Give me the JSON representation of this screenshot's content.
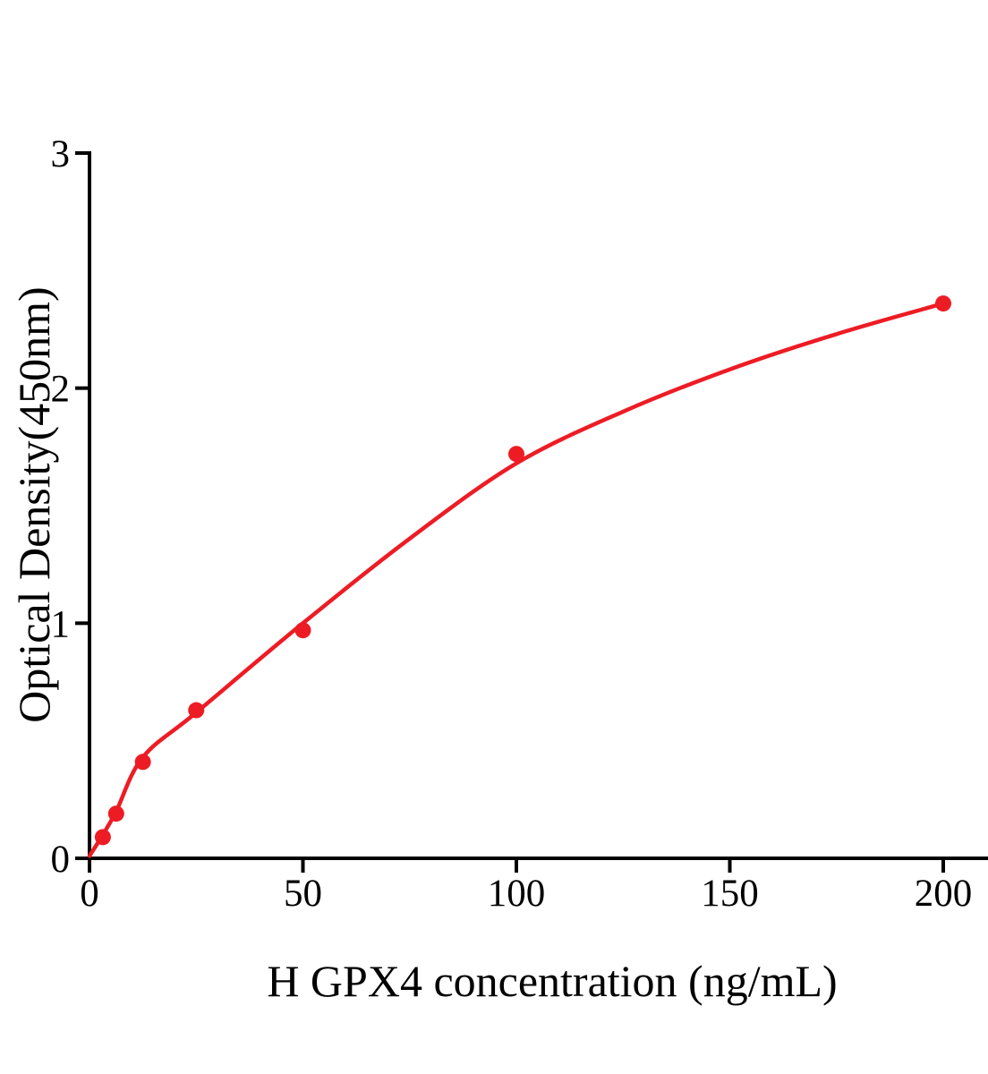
{
  "chart_data": {
    "type": "scatter",
    "title": "",
    "xlabel": "H GPX4 concentration (ng/mL)",
    "ylabel": "Optical Density(450nm)",
    "xlim": [
      0,
      200
    ],
    "ylim": [
      0,
      3
    ],
    "x_ticks": [
      0,
      50,
      100,
      150,
      200
    ],
    "y_ticks": [
      0,
      1,
      2,
      3
    ],
    "grid": false,
    "legend": "none",
    "marker": "filled-circle",
    "points": [
      {
        "x": 3.125,
        "y": 0.09
      },
      {
        "x": 6.25,
        "y": 0.19
      },
      {
        "x": 12.5,
        "y": 0.41
      },
      {
        "x": 25,
        "y": 0.63
      },
      {
        "x": 50,
        "y": 0.97
      },
      {
        "x": 100,
        "y": 1.72
      },
      {
        "x": 200,
        "y": 2.36
      }
    ],
    "fit_curve": [
      [
        0,
        0.01
      ],
      [
        3.125,
        0.1
      ],
      [
        6.25,
        0.2
      ],
      [
        12.5,
        0.43
      ],
      [
        25,
        0.62
      ],
      [
        50,
        1.0
      ],
      [
        75,
        1.36
      ],
      [
        100,
        1.68
      ],
      [
        125,
        1.9
      ],
      [
        150,
        2.08
      ],
      [
        175,
        2.23
      ],
      [
        200,
        2.36
      ]
    ],
    "colors": {
      "curve": "#ed1c24",
      "points": "#ed1c24",
      "axis": "#000000",
      "background": "#ffffff"
    }
  }
}
